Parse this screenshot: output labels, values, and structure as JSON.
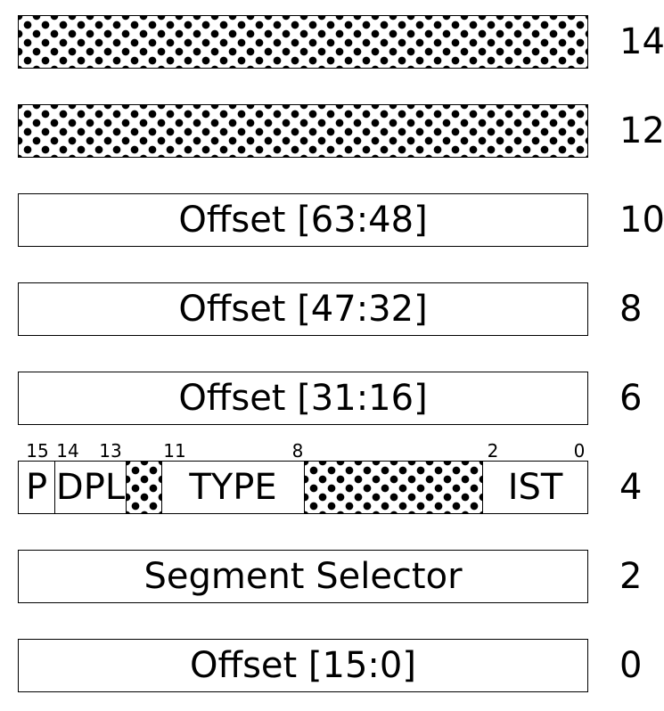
{
  "rows": [
    {
      "offset": "14",
      "label": "",
      "reserved": true
    },
    {
      "offset": "12",
      "label": "",
      "reserved": true
    },
    {
      "offset": "10",
      "label": "Offset [63:48]",
      "reserved": false
    },
    {
      "offset": "8",
      "label": "Offset [47:32]",
      "reserved": false
    },
    {
      "offset": "6",
      "label": "Offset [31:16]",
      "reserved": false
    },
    {
      "offset": "4",
      "label": "",
      "reserved": false
    },
    {
      "offset": "2",
      "label": "Segment Selector",
      "reserved": false
    },
    {
      "offset": "0",
      "label": "Offset [15:0]",
      "reserved": false
    }
  ],
  "flags_row": {
    "fields": {
      "p": "P",
      "dpl": "DPL",
      "type": "TYPE",
      "ist": "IST"
    },
    "bit_numbers": {
      "b15": "15",
      "b14": "14",
      "b13": "13",
      "b11": "11",
      "b8": "8",
      "b2": "2",
      "b0": "0"
    }
  },
  "colors": {
    "border": "#000000",
    "fill": "#ffffff",
    "dot": "#000000"
  }
}
